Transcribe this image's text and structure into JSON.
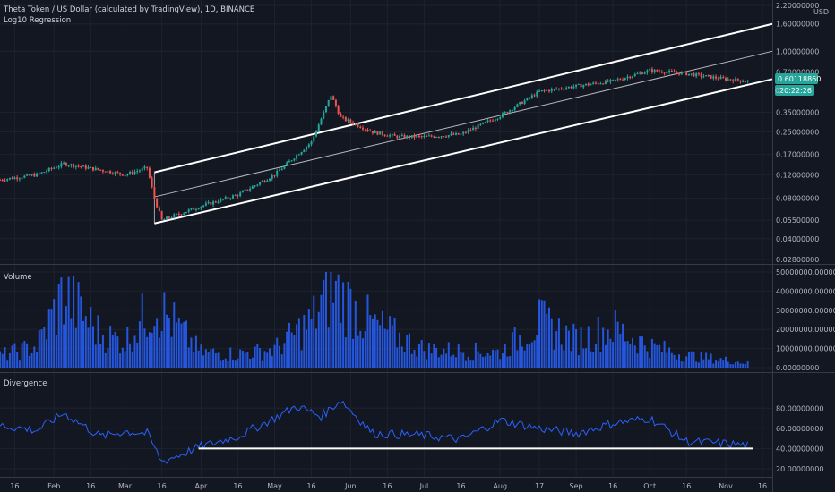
{
  "header": {
    "title": "Theta Token / US Dollar (calculated by TradingView), 1D, BINANCE",
    "indicator": "Log10 Regression"
  },
  "price_axis": {
    "unit": "USD",
    "ticks": [
      "2.20000000",
      "1.60000000",
      "1.00000000",
      "0.70000000",
      "0.35000000",
      "0.25000000",
      "0.17000000",
      "0.12000000",
      "0.08000000",
      "0.05500000",
      "0.04000000",
      "0.02800000"
    ],
    "last_price": "0.60118860",
    "countdown": "20:22:26",
    "partial_label": "0."
  },
  "volume_pane": {
    "label": "Volume",
    "ticks": [
      "50000000.00000000",
      "40000000.00000000",
      "30000000.00000000",
      "20000000.00000000",
      "10000000.00000000",
      "0.00000000"
    ]
  },
  "divergence_pane": {
    "label": "Divergence",
    "ticks": [
      "80.00000000",
      "60.00000000",
      "40.00000000",
      "20.00000000"
    ]
  },
  "time_axis": {
    "labels": [
      "16",
      "Feb",
      "16",
      "Mar",
      "16",
      "Apr",
      "16",
      "May",
      "16",
      "Jun",
      "16",
      "Jul",
      "16",
      "Aug",
      "17",
      "Sep",
      "16",
      "Oct",
      "16",
      "Nov",
      "16"
    ]
  },
  "colors": {
    "background": "#131722",
    "up": "#26a69a",
    "down": "#ef5350",
    "volume": "#2962ff",
    "divergence_line": "#2962ff",
    "channel": "#ffffff",
    "price_badge": "#26a69a",
    "grid": "#1e222d"
  },
  "chart_data": [
    {
      "type": "line",
      "title": "Theta Token / US Dollar (calculated by TradingView), 1D, BINANCE",
      "y_scale": "log",
      "ylim": [
        0.028,
        2.2
      ],
      "x": [
        "2020-01-10",
        "2020-01-25",
        "2020-02-05",
        "2020-02-20",
        "2020-03-01",
        "2020-03-10",
        "2020-03-13",
        "2020-03-16",
        "2020-04-01",
        "2020-04-16",
        "2020-05-01",
        "2020-05-16",
        "2020-05-24",
        "2020-05-28",
        "2020-06-10",
        "2020-06-20",
        "2020-07-01",
        "2020-07-16",
        "2020-08-01",
        "2020-08-17",
        "2020-09-01",
        "2020-09-16",
        "2020-10-01",
        "2020-10-16",
        "2020-11-01",
        "2020-11-10"
      ],
      "series": [
        {
          "values": [
            0.11,
            0.12,
            0.145,
            0.13,
            0.12,
            0.135,
            0.08,
            0.055,
            0.07,
            0.085,
            0.12,
            0.21,
            0.47,
            0.32,
            0.25,
            0.23,
            0.23,
            0.24,
            0.33,
            0.5,
            0.55,
            0.6,
            0.72,
            0.68,
            0.62,
            0.6
          ]
        }
      ],
      "annotations": [
        "Log10 Regression",
        "0.60118860",
        "20:22:26"
      ]
    },
    {
      "type": "bar",
      "title": "Volume",
      "ylim": [
        0,
        50000000
      ],
      "x": [
        "2020-01-10",
        "2020-01-25",
        "2020-02-05",
        "2020-02-20",
        "2020-03-01",
        "2020-03-13",
        "2020-04-01",
        "2020-04-16",
        "2020-05-01",
        "2020-05-16",
        "2020-05-24",
        "2020-06-10",
        "2020-07-01",
        "2020-08-01",
        "2020-08-17",
        "2020-09-01",
        "2020-09-16",
        "2020-10-01",
        "2020-10-16",
        "2020-11-01",
        "2020-11-10"
      ],
      "values": [
        8000000,
        14000000,
        48000000,
        22000000,
        17000000,
        42000000,
        10000000,
        9000000,
        12000000,
        30000000,
        52000000,
        28000000,
        12000000,
        10000000,
        30000000,
        18000000,
        26000000,
        14000000,
        8000000,
        5000000,
        3000000
      ]
    },
    {
      "type": "line",
      "title": "Divergence",
      "ylim": [
        20,
        90
      ],
      "x": [
        "2020-01-10",
        "2020-01-25",
        "2020-02-05",
        "2020-02-20",
        "2020-03-01",
        "2020-03-10",
        "2020-03-16",
        "2020-04-01",
        "2020-04-16",
        "2020-05-01",
        "2020-05-10",
        "2020-05-20",
        "2020-05-28",
        "2020-06-10",
        "2020-07-01",
        "2020-07-16",
        "2020-08-01",
        "2020-08-17",
        "2020-09-01",
        "2020-09-16",
        "2020-10-01",
        "2020-10-16",
        "2020-11-01",
        "2020-11-10"
      ],
      "values": [
        63,
        58,
        75,
        52,
        57,
        55,
        27,
        42,
        52,
        70,
        82,
        72,
        88,
        55,
        53,
        49,
        68,
        60,
        55,
        65,
        70,
        47,
        45,
        43
      ],
      "annotations": [
        "horizontal level at 40"
      ]
    }
  ]
}
